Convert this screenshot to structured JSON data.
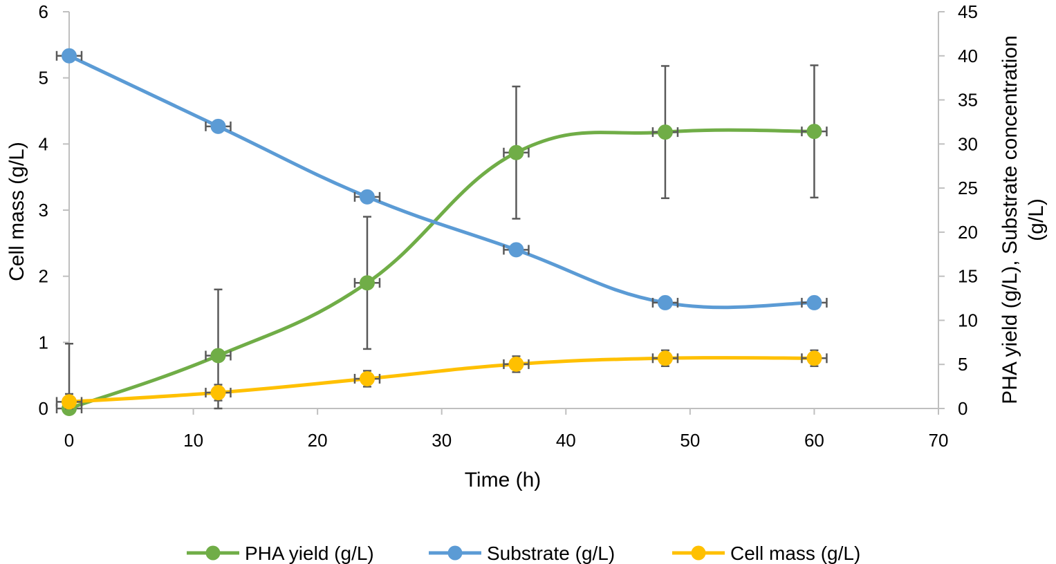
{
  "chart_data": {
    "type": "line",
    "smooth": true,
    "title": "",
    "xlabel": "Time (h)",
    "ylabel": "Cell mass (g/L)",
    "y2label_lines": [
      "PHA yield (g/L), Substrate concentration",
      "(g/L)"
    ],
    "xlim": [
      0,
      70
    ],
    "xticks": [
      0,
      10,
      20,
      30,
      40,
      50,
      60,
      70
    ],
    "ylim": [
      0,
      6
    ],
    "yticks": [
      0,
      1,
      2,
      3,
      4,
      5,
      6
    ],
    "y2lim": [
      0,
      45
    ],
    "y2ticks": [
      0,
      5,
      10,
      15,
      20,
      25,
      30,
      35,
      40,
      45
    ],
    "x": [
      0,
      12,
      24,
      36,
      48,
      60
    ],
    "legend_position": "bottom",
    "series": [
      {
        "name": "PHA yield (g/L)",
        "axis": "left",
        "color": "#70AD47",
        "values": [
          0.0,
          0.8,
          1.9,
          3.87,
          4.18,
          4.19
        ],
        "errors": [
          0.98,
          1.0,
          1.0,
          1.0,
          1.0,
          1.0
        ]
      },
      {
        "name": "Substrate (g/L)",
        "axis": "right",
        "color": "#5B9BD5",
        "values": [
          40,
          32,
          24,
          18,
          12,
          12
        ],
        "errors": [
          0.5,
          0.5,
          0.5,
          0.5,
          0.5,
          0.5
        ]
      },
      {
        "name": "Cell mass (g/L)",
        "axis": "left",
        "color": "#FFC000",
        "values": [
          0.1,
          0.24,
          0.45,
          0.67,
          0.76,
          0.76
        ],
        "errors": [
          0.12,
          0.12,
          0.12,
          0.12,
          0.12,
          0.12
        ]
      }
    ]
  }
}
